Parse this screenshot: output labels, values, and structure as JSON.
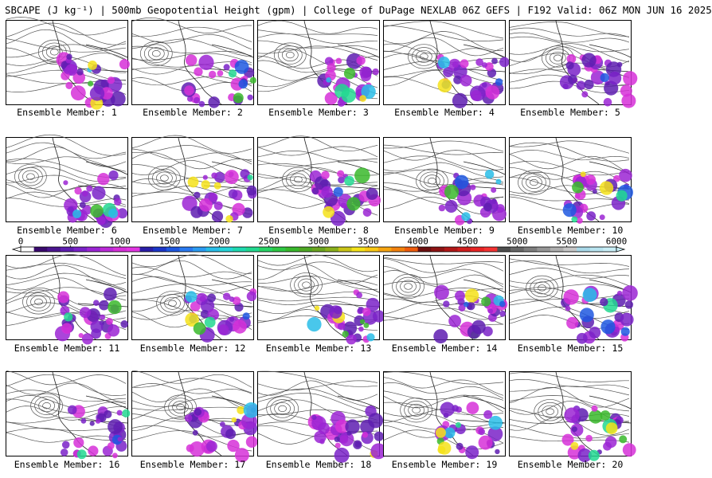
{
  "header": {
    "title": "SBCAPE (J kg⁻¹) | 500mb Geopotential Height (gpm) | College of DuPage NEXLAB 06Z GEFS | F192 Valid: 06Z MON JUN 16 2025"
  },
  "panels": [
    {
      "label": "Ensemble Member: 1"
    },
    {
      "label": "Ensemble Member: 2"
    },
    {
      "label": "Ensemble Member: 3"
    },
    {
      "label": "Ensemble Member: 4"
    },
    {
      "label": "Ensemble Member: 5"
    },
    {
      "label": "Ensemble Member: 6"
    },
    {
      "label": "Ensemble Member: 7"
    },
    {
      "label": "Ensemble Member: 8"
    },
    {
      "label": "Ensemble Member: 9"
    },
    {
      "label": "Ensemble Member: 10"
    },
    {
      "label": "Ensemble Member: 11"
    },
    {
      "label": "Ensemble Member: 12"
    },
    {
      "label": "Ensemble Member: 13"
    },
    {
      "label": "Ensemble Member: 14"
    },
    {
      "label": "Ensemble Member: 15"
    },
    {
      "label": "Ensemble Member: 16"
    },
    {
      "label": "Ensemble Member: 17"
    },
    {
      "label": "Ensemble Member: 18"
    },
    {
      "label": "Ensemble Member: 19"
    },
    {
      "label": "Ensemble Member: 20"
    }
  ],
  "colorbar": {
    "ticks": [
      "0",
      "500",
      "1000",
      "1500",
      "2000",
      "2500",
      "3000",
      "3500",
      "4000",
      "4500",
      "5000",
      "5500",
      "6000"
    ],
    "colors": [
      "#ffffff",
      "#3a0a6e",
      "#4b1590",
      "#5e1db0",
      "#7a22c8",
      "#9b25d4",
      "#bb2ad8",
      "#d630d8",
      "#e235e2",
      "#2a1ea8",
      "#1c36c8",
      "#1f58e0",
      "#2a7af0",
      "#2c9cf2",
      "#29bde8",
      "#26d4d8",
      "#1fd9b0",
      "#22d890",
      "#28d466",
      "#2ec844",
      "#39b82c",
      "#4ea824",
      "#6aa420",
      "#8ab01c",
      "#c9c418",
      "#f4e21a",
      "#f8c814",
      "#f6a410",
      "#f2820e",
      "#ee5c0c",
      "#6c1010",
      "#8e1414",
      "#b01818",
      "#d01e1e",
      "#e82424",
      "#f43232",
      "#4e4e4e",
      "#666666",
      "#7e7e7e",
      "#969696",
      "#aeaeae",
      "#c6c6c6",
      "#a8d8e8",
      "#b8e4f0",
      "#c8eef6"
    ]
  }
}
